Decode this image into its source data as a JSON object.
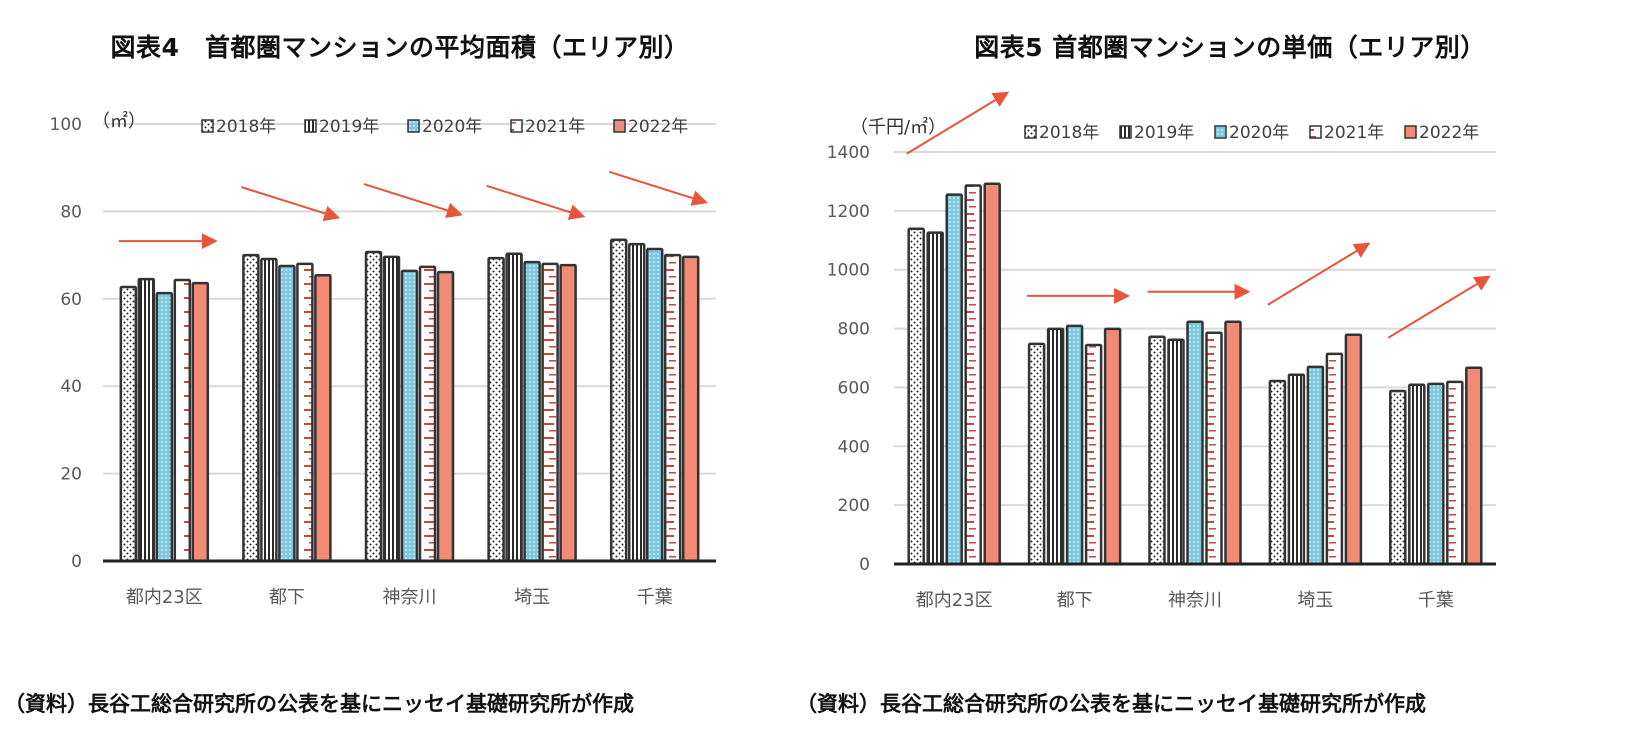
{
  "chart_data": [
    {
      "type": "bar",
      "title": "図表4　首都圏マンションの平均面積（エリア別）",
      "unit_label": "（㎡）",
      "xlabel": "",
      "ylabel": "（㎡）",
      "ylim": [
        0,
        100
      ],
      "yticks": [
        0,
        20,
        40,
        60,
        80,
        100
      ],
      "ytick_labels": [
        "0",
        "20",
        "40",
        "60",
        "80",
        "100"
      ],
      "grid": true,
      "legend_position": "top",
      "categories": [
        "都内23区",
        "都下",
        "神奈川",
        "埼玉",
        "千葉"
      ],
      "series": [
        {
          "name": "2018年",
          "pattern": "dots",
          "values": [
            62.7,
            70.0,
            70.7,
            69.3,
            73.5
          ]
        },
        {
          "name": "2019年",
          "pattern": "vertical-lines",
          "values": [
            64.5,
            69.1,
            69.6,
            70.3,
            72.5
          ]
        },
        {
          "name": "2020年",
          "pattern": "blue-mesh",
          "values": [
            61.3,
            67.5,
            66.4,
            68.4,
            71.4
          ]
        },
        {
          "name": "2021年",
          "pattern": "red-dashes",
          "values": [
            64.3,
            68.0,
            67.3,
            68.0,
            70.0
          ]
        },
        {
          "name": "2022年",
          "pattern": "solid-salmon",
          "values": [
            63.6,
            65.4,
            66.1,
            67.7,
            69.6
          ]
        }
      ],
      "trend_arrows": [
        "flat",
        "down",
        "down",
        "down",
        "down"
      ],
      "source": "（資料）長谷工総合研究所の公表を基にニッセイ基礎研究所が作成"
    },
    {
      "type": "bar",
      "title": "図表5 首都圏マンションの単価（エリア別）",
      "unit_label": "（千円/㎡）",
      "xlabel": "",
      "ylabel": "（千円/㎡）",
      "ylim": [
        0,
        1400
      ],
      "yticks": [
        0,
        200,
        400,
        600,
        800,
        1000,
        1200,
        1400
      ],
      "ytick_labels": [
        "0",
        "200",
        "400",
        "600",
        "800",
        "1000",
        "1200",
        "1400"
      ],
      "grid": true,
      "legend_position": "top",
      "categories": [
        "都内23区",
        "都下",
        "神奈川",
        "埼玉",
        "千葉"
      ],
      "series": [
        {
          "name": "2018年",
          "pattern": "dots",
          "values": [
            1139,
            748,
            772,
            622,
            588
          ]
        },
        {
          "name": "2019年",
          "pattern": "vertical-lines",
          "values": [
            1126,
            799,
            762,
            643,
            609
          ]
        },
        {
          "name": "2020年",
          "pattern": "blue-mesh",
          "values": [
            1255,
            809,
            823,
            670,
            612
          ]
        },
        {
          "name": "2021年",
          "pattern": "red-dashes",
          "values": [
            1286,
            744,
            786,
            714,
            619
          ]
        },
        {
          "name": "2022年",
          "pattern": "solid-salmon",
          "values": [
            1292,
            799,
            823,
            779,
            667
          ]
        }
      ],
      "trend_arrows": [
        "up",
        "flat",
        "flat",
        "up",
        "up"
      ],
      "source": "（資料）長谷工総合研究所の公表を基にニッセイ基礎研究所が作成"
    }
  ],
  "colors": {
    "salmon": "#f28b76",
    "arrow": "#e8553a",
    "blue_mesh": "#7cc6de",
    "dash_red": "#c9463a",
    "bar_border": "#333333",
    "grid": "#d9d9d9",
    "axis_text": "#595959"
  }
}
